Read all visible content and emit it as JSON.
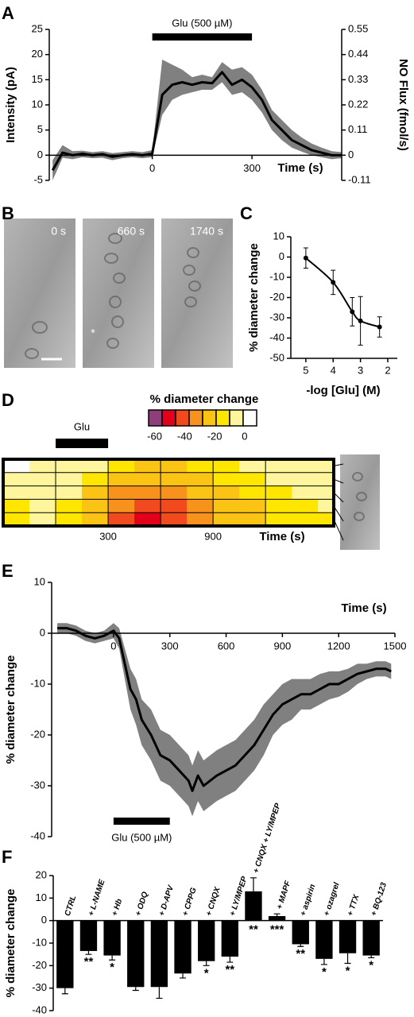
{
  "chart_data": [
    {
      "panel": "A",
      "type": "line",
      "x": [
        -300,
        -270,
        -240,
        -210,
        -180,
        -150,
        -120,
        -90,
        -60,
        -30,
        0,
        30,
        60,
        90,
        120,
        150,
        180,
        210,
        240,
        270,
        300,
        330,
        360,
        390,
        420,
        450,
        480,
        510,
        540,
        570
      ],
      "series": [
        {
          "color": "#000000",
          "band_color": "#808080",
          "values": [
            -3,
            0.5,
            0,
            0.3,
            0,
            0.2,
            -0.3,
            0,
            0.2,
            0,
            0.3,
            12,
            14,
            14.5,
            14,
            14.5,
            14.3,
            16.5,
            14,
            15,
            13.5,
            11,
            7,
            5,
            3,
            2,
            1,
            0.5,
            0,
            0
          ],
          "upper": [
            -1,
            2,
            0.8,
            0.9,
            0.6,
            0.8,
            0.4,
            0.6,
            0.8,
            0.6,
            1,
            19,
            18,
            17,
            15.5,
            16,
            15.5,
            18.5,
            17,
            17.5,
            16,
            13,
            9,
            7,
            5,
            3.5,
            2.3,
            1.5,
            0.8,
            0.6
          ],
          "lower": [
            -5,
            -0.5,
            -0.8,
            -0.4,
            -0.6,
            -0.5,
            -1,
            -0.6,
            -0.4,
            -0.6,
            -0.4,
            8,
            11,
            12,
            12.5,
            13,
            13,
            14.5,
            12,
            12.5,
            11,
            8.5,
            5,
            3,
            1.5,
            0.7,
            0,
            -0.4,
            -0.8,
            -0.6
          ]
        }
      ],
      "xlim": [
        -310,
        570
      ],
      "xticks": [
        0,
        300
      ],
      "xlabel": "Time (s)",
      "ylim": [
        -5,
        25
      ],
      "yticks": [
        -5,
        0,
        5,
        10,
        15,
        20,
        25
      ],
      "ylabel": "Intensity (pA)",
      "y2lim": [
        -0.11,
        0.55
      ],
      "y2ticks": [
        -0.11,
        0,
        0.11,
        0.22,
        0.33,
        0.44,
        0.55
      ],
      "y2label": "NO Flux (fmol/s)",
      "stimulus": {
        "label": "Glu (500 µM)",
        "start": 0,
        "end": 300
      }
    },
    {
      "panel": "B",
      "type": "image",
      "frames": [
        "0 s",
        "660 s",
        "1740 s"
      ],
      "marker": "*"
    },
    {
      "panel": "C",
      "type": "scatter",
      "x": [
        5,
        4,
        3.3,
        3,
        2.3
      ],
      "values": [
        -0.5,
        -12.5,
        -27,
        -31.5,
        -34.5
      ],
      "errors": [
        5,
        6,
        7,
        12,
        5
      ],
      "xlim": [
        5.55,
        1.65
      ],
      "xticks": [
        5,
        4,
        3,
        2
      ],
      "xlabel": "-log [Glu] (M)",
      "ylim": [
        -50,
        10
      ],
      "yticks": [
        -50,
        -40,
        -30,
        -20,
        -10,
        0,
        10
      ],
      "ylabel": "% diameter change",
      "color": "#000000"
    },
    {
      "panel": "D",
      "type": "heatmap",
      "x_edges": [
        -300,
        -150,
        0,
        150,
        300,
        450,
        600,
        750,
        900,
        1050,
        1200,
        1350,
        1500,
        1590
      ],
      "values": [
        [
          0,
          -5,
          -5,
          -10,
          -15,
          -20,
          -20,
          -15,
          -15,
          -10,
          -10,
          -5,
          -5
        ],
        [
          -5,
          -10,
          -10,
          -15,
          -20,
          -25,
          -25,
          -20,
          -15,
          -15,
          -10,
          -10,
          -5
        ],
        [
          -10,
          -10,
          -10,
          -20,
          -30,
          -35,
          -30,
          -25,
          -20,
          -15,
          -15,
          -10,
          -10
        ],
        [
          -15,
          -10,
          -15,
          -20,
          -35,
          -45,
          -40,
          -30,
          -25,
          -20,
          -15,
          -15,
          -10
        ],
        [
          -15,
          -10,
          -15,
          -25,
          -40,
          -50,
          -45,
          -35,
          -25,
          -20,
          -15,
          -15,
          -15
        ]
      ],
      "xlim": [
        -300,
        1590
      ],
      "xticks": [
        {
          "value": 0,
          "label": null
        },
        300,
        {
          "value": 600,
          "label": null
        },
        900,
        {
          "value": 1200,
          "label": null
        }
      ],
      "xlabel": "Time (s)",
      "colorbar": {
        "title": "% diameter change",
        "clim": [
          -64,
          8
        ],
        "ticks": [
          -60,
          -40,
          -20,
          0
        ],
        "colors": [
          "#8e3f7a",
          "#e3001b",
          "#f04a1e",
          "#f7931d",
          "#fbc314",
          "#ffe600",
          "#fff59c",
          "#ffffff"
        ]
      },
      "stimulus": {
        "label": "Glu",
        "start": 0,
        "end": 300
      }
    },
    {
      "panel": "E",
      "type": "line",
      "x": [
        -300,
        -250,
        -200,
        -150,
        -100,
        -50,
        0,
        30,
        60,
        90,
        120,
        150,
        200,
        250,
        300,
        350,
        400,
        420,
        450,
        480,
        550,
        600,
        650,
        700,
        750,
        800,
        850,
        900,
        950,
        1000,
        1050,
        1100,
        1150,
        1200,
        1250,
        1300,
        1350,
        1400,
        1450,
        1480
      ],
      "series": [
        {
          "color": "#000000",
          "band_color": "#808080",
          "values": [
            1,
            1,
            0.5,
            -0.5,
            -1,
            -0.5,
            0.5,
            -1,
            -6,
            -11,
            -13,
            -17,
            -20,
            -24,
            -25,
            -27,
            -29,
            -31,
            -28,
            -30,
            -28,
            -27,
            -26,
            -24,
            -22,
            -19,
            -16,
            -14,
            -13,
            -12,
            -12,
            -11,
            -10,
            -10,
            -9,
            -8,
            -7.5,
            -7,
            -7,
            -7.5
          ],
          "upper": [
            2,
            2,
            1.5,
            0.5,
            0,
            0.5,
            2,
            1,
            -3,
            -7,
            -9,
            -13,
            -15,
            -19,
            -20,
            -22,
            -24,
            -26,
            -23,
            -25,
            -23,
            -22,
            -21,
            -19,
            -17,
            -14,
            -12,
            -10,
            -9,
            -9,
            -9,
            -8,
            -7.5,
            -7.5,
            -7,
            -6,
            -6,
            -5.5,
            -5.5,
            -6
          ],
          "lower": [
            0,
            0,
            -0.5,
            -1.5,
            -2,
            -1.5,
            -1,
            -3,
            -9,
            -15,
            -18,
            -22,
            -25,
            -29,
            -30,
            -32,
            -34,
            -36,
            -33,
            -35,
            -33,
            -32,
            -31,
            -29,
            -27,
            -24,
            -20,
            -18,
            -17,
            -15,
            -15,
            -14,
            -13,
            -12.5,
            -11.5,
            -10,
            -9,
            -8.5,
            -8.5,
            -9
          ]
        }
      ],
      "xlim": [
        -330,
        1500
      ],
      "xticks": [
        0,
        300,
        600,
        900,
        1200,
        1500
      ],
      "xlabel": "Time (s)",
      "ylim": [
        -40,
        10
      ],
      "yticks": [
        -40,
        -30,
        -20,
        -10,
        0,
        10
      ],
      "ylabel": "% diameter change",
      "stimulus": {
        "label": "Glu (500 µM)",
        "start": 0,
        "end": 300
      }
    },
    {
      "panel": "F",
      "type": "bar",
      "categories": [
        "CTRL",
        "+ L-NAME",
        "+ Hb",
        "+ ODQ",
        "+ D-APV",
        "+ CPPG",
        "+ CNQX",
        "+ LY/MPEP",
        "+ CNQX + LY/MPEP",
        "+ MAPF",
        "+ aspirin",
        "+ ozagrel",
        "+ TTX",
        "+ BQ-123"
      ],
      "values": [
        -30,
        -13.5,
        -15.5,
        -29.5,
        -29.5,
        -23.5,
        -18,
        -16,
        13,
        2,
        -10.5,
        -17,
        -14.5,
        -15.5
      ],
      "errors": [
        2.5,
        1.5,
        2,
        1.5,
        5,
        2,
        2,
        2.5,
        6,
        1,
        1,
        2.5,
        4.5,
        1
      ],
      "significance": [
        null,
        "**",
        "*",
        null,
        null,
        null,
        "*",
        "**",
        "**",
        "***",
        "**",
        "*",
        "*",
        "*"
      ],
      "color": "#000000",
      "ylim": [
        -40,
        20
      ],
      "yticks": [
        -40,
        -30,
        -20,
        -10,
        0,
        10,
        20
      ],
      "ylabel": "% diameter change"
    }
  ]
}
